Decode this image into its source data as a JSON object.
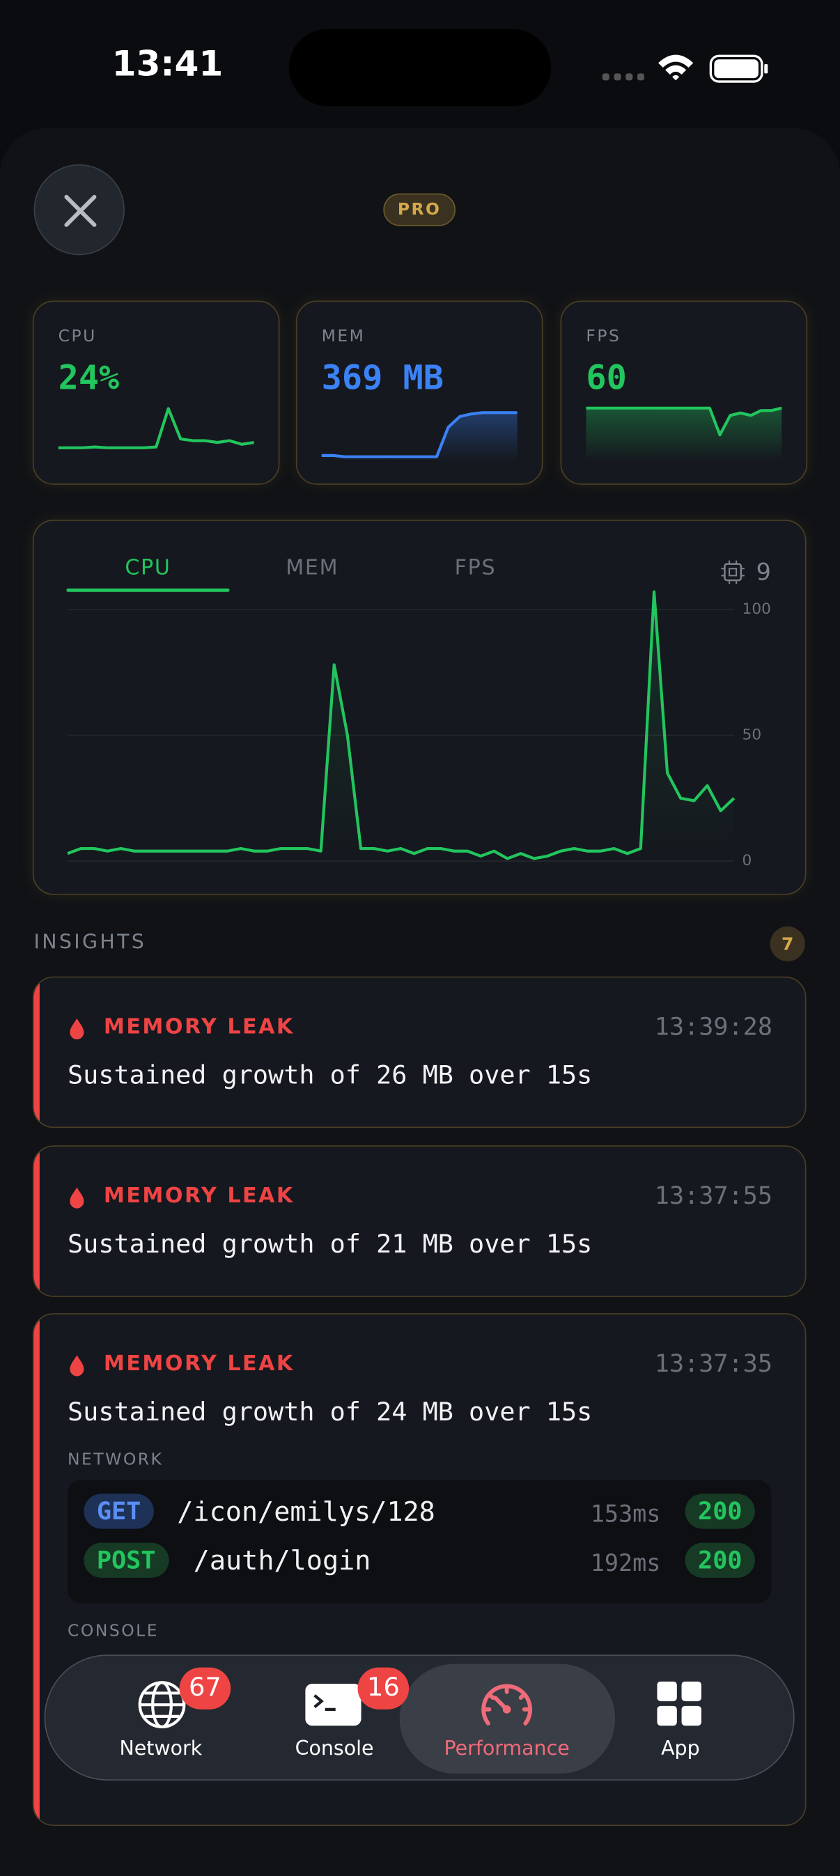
{
  "status_bar": {
    "time": "13:41"
  },
  "header": {
    "badge": "PRO"
  },
  "metrics": [
    {
      "label": "CPU",
      "value": "24%",
      "color": "#22c55e",
      "ylim": [
        0,
        30
      ],
      "values": [
        5,
        5,
        5,
        5.5,
        5,
        5,
        5,
        5,
        5.5,
        27,
        10,
        9,
        9,
        8,
        9,
        7,
        8
      ]
    },
    {
      "label": "MEM",
      "value": "369 MB",
      "color": "#3b82f6",
      "ylim": [
        0,
        40
      ],
      "values": [
        1,
        1,
        0,
        0,
        0,
        0,
        0,
        0,
        0,
        0,
        0,
        22,
        30,
        32,
        33,
        33,
        33,
        33
      ]
    },
    {
      "label": "FPS",
      "value": "60",
      "color": "#22c55e",
      "ylim": [
        40,
        62
      ],
      "values": [
        60,
        60,
        60,
        60,
        60,
        60,
        60,
        60,
        60,
        60,
        60,
        60,
        60,
        49,
        57,
        58,
        57,
        59,
        59,
        60
      ]
    }
  ],
  "chart": {
    "type": "line",
    "tabs": [
      "CPU",
      "MEM",
      "FPS"
    ],
    "core_count": "9",
    "color": "#22c55e",
    "ylim": [
      0,
      110
    ],
    "yticks": [
      0,
      50,
      100
    ],
    "values": [
      3,
      5,
      5,
      4,
      5,
      4,
      4,
      4,
      4,
      4,
      4,
      4,
      4,
      5,
      4,
      4,
      5,
      5,
      5,
      4,
      78,
      50,
      5,
      5,
      4,
      5,
      3,
      5,
      5,
      4,
      4,
      2,
      4,
      1,
      3,
      1,
      2,
      4,
      5,
      4,
      4,
      5,
      3,
      5,
      107,
      35,
      25,
      24,
      30,
      20,
      25
    ]
  },
  "insights": {
    "title": "INSIGHTS",
    "count": "7",
    "items": [
      {
        "type": "MEMORY LEAK",
        "time": "13:39:28",
        "message": "Sustained growth of 26 MB over 15s"
      },
      {
        "type": "MEMORY LEAK",
        "time": "13:37:55",
        "message": "Sustained growth of 21 MB over 15s"
      },
      {
        "type": "MEMORY LEAK",
        "time": "13:37:35",
        "message": "Sustained growth of 24 MB over 15s",
        "network_label": "NETWORK",
        "requests": [
          {
            "method": "GET",
            "path": "/icon/emilys/128",
            "duration": "153ms",
            "status": "200"
          },
          {
            "method": "POST",
            "path": "/auth/login",
            "duration": "192ms",
            "status": "200"
          }
        ],
        "console_label": "CONSOLE"
      }
    ]
  },
  "tab_bar": [
    {
      "label": "Network",
      "badge": "67"
    },
    {
      "label": "Console",
      "badge": "16"
    },
    {
      "label": "Performance"
    },
    {
      "label": "App"
    }
  ]
}
